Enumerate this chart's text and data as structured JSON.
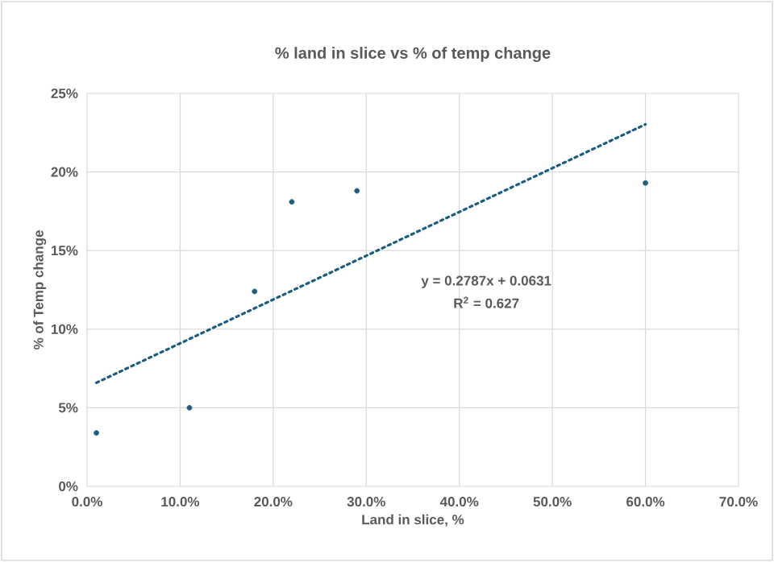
{
  "chart_data": {
    "type": "scatter",
    "title": "% land in slice vs % of temp change",
    "xlabel": "Land in slice, %",
    "ylabel": "% of Temp change",
    "annotations": [
      "y = 0.2787x + 0.0631",
      "R$^{2}$ = 0.627"
    ],
    "x": [
      0.01,
      0.11,
      0.18,
      0.22,
      0.29,
      0.6
    ],
    "series": [
      {
        "color": "#1b5e80",
        "values": [
          0.034,
          0.05,
          0.124,
          0.181,
          0.188,
          0.193
        ]
      },
      {
        "type": "line",
        "color": "#1b5e80",
        "line_style": "dotted",
        "marker": "none",
        "x": [
          0.01,
          0.6
        ],
        "values": [
          0.0659,
          0.2303
        ]
      }
    ],
    "xlim": [
      0,
      0.7
    ],
    "ylim": [
      0,
      0.25
    ],
    "xticks": [
      {
        "value": 0,
        "label": "0.0%"
      },
      {
        "value": 0.1,
        "label": "10.0%"
      },
      {
        "value": 0.2,
        "label": "20.0%"
      },
      {
        "value": 0.3,
        "label": "30.0%"
      },
      {
        "value": 0.4,
        "label": "40.0%"
      },
      {
        "value": 0.5,
        "label": "50.0%"
      },
      {
        "value": 0.6,
        "label": "60.0%"
      },
      {
        "value": 0.7,
        "label": "70.0%"
      }
    ],
    "yticks": [
      {
        "value": 0,
        "label": "0%"
      },
      {
        "value": 0.05,
        "label": "5%"
      },
      {
        "value": 0.1,
        "label": "10%"
      },
      {
        "value": 0.15,
        "label": "15%"
      },
      {
        "value": 0.2,
        "label": "20%"
      },
      {
        "value": 0.25,
        "label": "25%"
      }
    ],
    "grid": true,
    "marker": "circle"
  }
}
